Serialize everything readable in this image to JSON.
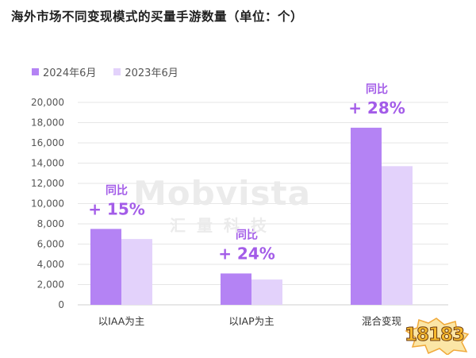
{
  "title": "海外市场不同变现模式的买量手游数量（单位：个）",
  "watermark": {
    "main": "Mobvista",
    "sub": "汇量科技"
  },
  "logo_text": "18183",
  "colors": {
    "series_2024": "#b483f4",
    "series_2023": "#e3d2fb",
    "yoy": "#a35ce8"
  },
  "chart_data": {
    "type": "bar",
    "title": "海外市场不同变现模式的买量手游数量（单位：个）",
    "xlabel": "",
    "ylabel": "",
    "categories": [
      "以IAA为主",
      "以IAP为主",
      "混合变现"
    ],
    "series": [
      {
        "name": "2024年6月",
        "values": [
          7500,
          3100,
          17500
        ]
      },
      {
        "name": "2023年6月",
        "values": [
          6500,
          2500,
          13700
        ]
      }
    ],
    "yticks": [
      "0",
      "2,000",
      "4,000",
      "6,000",
      "8,000",
      "10,000",
      "12,000",
      "14,000",
      "16,000",
      "18,000",
      "20,000"
    ],
    "ylim": [
      0,
      20000
    ],
    "grid": true,
    "legend_position": "top-left",
    "annotations": [
      {
        "label": "同比",
        "value": "+ 15%"
      },
      {
        "label": "同比",
        "value": "+ 24%"
      },
      {
        "label": "同比",
        "value": "+ 28%"
      }
    ]
  }
}
